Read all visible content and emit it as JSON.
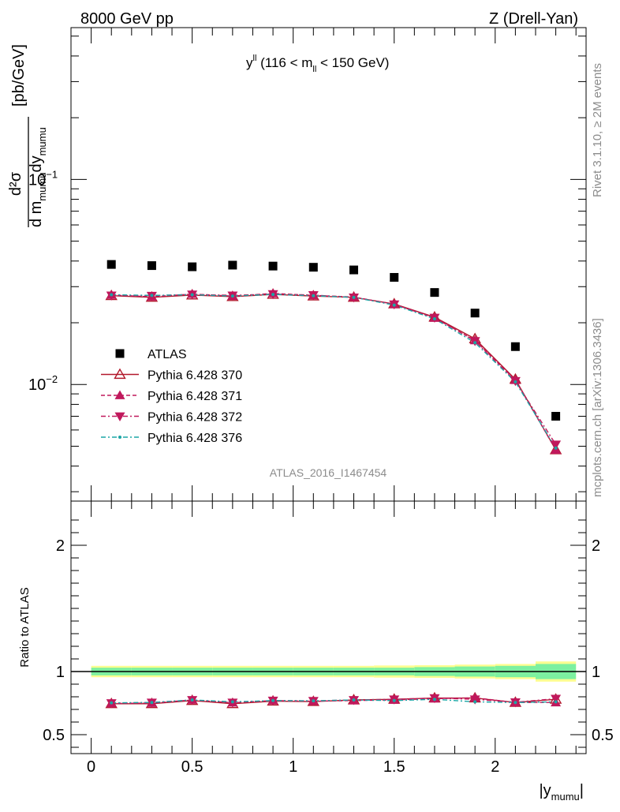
{
  "header": {
    "left": "8000 GeV pp",
    "right": "Z (Drell-Yan)"
  },
  "side": {
    "rivet": "Rivet 3.1.10, ≥ 2M events",
    "mcplots": "mcplots.cern.ch [arXiv:1306.3436]"
  },
  "chart_data": [
    {
      "type": "scatter",
      "panel": "main",
      "title_main": "y",
      "title_sup": "ll",
      "title_rest1": " (116 < m",
      "title_sub": "ll",
      "title_rest2": " < 150 GeV)",
      "ylabel": {
        "num": "d²σ",
        "den_a": "d m",
        "den_sub1": "mumu",
        "den_b": "dy",
        "den_sub2": "mumu",
        "unit": "[pb/GeV]"
      },
      "yscale": "log",
      "ylim": [
        0.0027,
        0.55
      ],
      "xlim": [
        -0.1,
        2.45
      ],
      "ytick_labels": [
        {
          "value": 0.1,
          "base": "10",
          "exp": "−1"
        },
        {
          "value": 0.01,
          "base": "10",
          "exp": "−2"
        }
      ],
      "watermark": "ATLAS_2016_I1467454",
      "legend_position": "left",
      "x": [
        0.1,
        0.3,
        0.5,
        0.7,
        0.9,
        1.1,
        1.3,
        1.5,
        1.7,
        1.9,
        2.1,
        2.3
      ],
      "series": [
        {
          "name": "ATLAS",
          "marker": "square",
          "color": "#000000",
          "values": [
            0.0385,
            0.038,
            0.0375,
            0.0382,
            0.0378,
            0.0373,
            0.0362,
            0.0333,
            0.0281,
            0.0223,
            0.0153,
            0.007
          ]
        },
        {
          "name": "Pythia 6.428 370",
          "marker": "triangle-up-open",
          "color": "#b2182b",
          "line": "solid",
          "values": [
            0.0271,
            0.0266,
            0.0273,
            0.0268,
            0.0275,
            0.027,
            0.0266,
            0.0247,
            0.0213,
            0.0167,
            0.0106,
            0.0048
          ]
        },
        {
          "name": "Pythia 6.428 371",
          "marker": "triangle-up",
          "color": "#c0185c",
          "line": "dashed",
          "values": [
            0.0273,
            0.0268,
            0.0276,
            0.027,
            0.0278,
            0.0272,
            0.0267,
            0.0246,
            0.0211,
            0.0164,
            0.0105,
            0.0048
          ]
        },
        {
          "name": "Pythia 6.428 372",
          "marker": "triangle-down",
          "color": "#c0185c",
          "line": "dashdot",
          "values": [
            0.0272,
            0.0271,
            0.0275,
            0.0272,
            0.0276,
            0.0273,
            0.0266,
            0.0246,
            0.0212,
            0.0163,
            0.0104,
            0.0051
          ]
        },
        {
          "name": "Pythia 6.428 376",
          "marker": "dot",
          "color": "#1ba6a6",
          "line": "dashdot",
          "values": [
            0.0274,
            0.0272,
            0.0274,
            0.027,
            0.0275,
            0.0271,
            0.0266,
            0.0244,
            0.0209,
            0.016,
            0.0103,
            0.0049
          ]
        }
      ]
    },
    {
      "type": "scatter",
      "panel": "ratio",
      "ylabel": "Ratio to ATLAS",
      "xlabel_main": "|y",
      "xlabel_sub": "mumu",
      "xlabel_end": "|",
      "ylim": [
        0.35,
        2.35
      ],
      "xlim": [
        -0.1,
        2.45
      ],
      "x_tick_values": [
        0,
        0.5,
        1,
        1.5,
        2
      ],
      "x_tick_labels": [
        "0",
        "0.5",
        "1",
        "1.5",
        "2"
      ],
      "y_tick_values": [
        0.5,
        1,
        2
      ],
      "y_tick_labels": [
        "0.5",
        "1",
        "2"
      ],
      "x": [
        0.1,
        0.3,
        0.5,
        0.7,
        0.9,
        1.1,
        1.3,
        1.5,
        1.7,
        1.9,
        2.1,
        2.3
      ],
      "x_edges": [
        0,
        0.2,
        0.4,
        0.6,
        0.8,
        1.0,
        1.2,
        1.4,
        1.6,
        1.8,
        2.0,
        2.2,
        2.4
      ],
      "band_inner": [
        0.03,
        0.03,
        0.03,
        0.03,
        0.03,
        0.03,
        0.03,
        0.03,
        0.035,
        0.04,
        0.045,
        0.06
      ],
      "band_outer": [
        0.045,
        0.045,
        0.045,
        0.045,
        0.045,
        0.045,
        0.045,
        0.048,
        0.05,
        0.055,
        0.06,
        0.08
      ],
      "band_inner_color": "#7df0a0",
      "band_outer_color": "#fdfd90",
      "series": [
        {
          "name": "Pythia 6.428 370",
          "color": "#b2182b",
          "values": [
            0.745,
            0.745,
            0.77,
            0.745,
            0.765,
            0.762,
            0.775,
            0.78,
            0.79,
            0.79,
            0.755,
            0.78
          ]
        },
        {
          "name": "Pythia 6.428 371",
          "color": "#c0185c",
          "values": [
            0.748,
            0.75,
            0.775,
            0.753,
            0.77,
            0.765,
            0.77,
            0.775,
            0.785,
            0.792,
            0.755,
            0.755
          ]
        },
        {
          "name": "Pythia 6.428 372",
          "color": "#c0185c",
          "values": [
            0.75,
            0.755,
            0.775,
            0.755,
            0.77,
            0.768,
            0.775,
            0.78,
            0.79,
            0.78,
            0.757,
            0.785
          ]
        },
        {
          "name": "Pythia 6.428 376",
          "color": "#1ba6a6",
          "values": [
            0.752,
            0.755,
            0.775,
            0.76,
            0.77,
            0.768,
            0.775,
            0.77,
            0.78,
            0.76,
            0.755,
            0.76
          ]
        }
      ]
    }
  ]
}
